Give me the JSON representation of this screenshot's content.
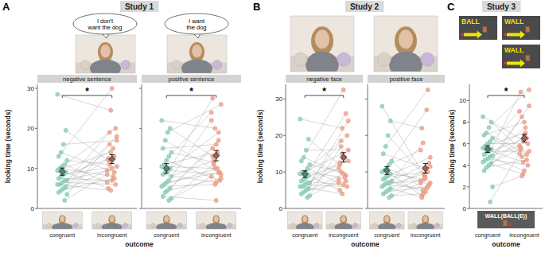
{
  "studies": [
    {
      "title": "Study 1",
      "letter": "A",
      "bubbles": [
        "I don't want the dog",
        "I want the dog"
      ]
    },
    {
      "title": "Study 2",
      "letter": "B"
    },
    {
      "title": "Study 3",
      "letter": "C",
      "screens": [
        "BALL",
        "WALL",
        "WALL"
      ],
      "outcome_screen": "WALL(BALL(E))"
    }
  ],
  "chart_data": [
    {
      "type": "scatter",
      "title": "negative sentence",
      "ylabel": "looking time (seconds)",
      "xlabel": "outcome",
      "ylim": [
        0,
        31
      ],
      "yticks": [
        0,
        10,
        20,
        30
      ],
      "series": [
        {
          "name": "congruent",
          "color": "#8dd3b7",
          "values": [
            28.5,
            19.5,
            16,
            14,
            13,
            12,
            11,
            10.5,
            10,
            9.5,
            9,
            8.5,
            8,
            7.5,
            7,
            7,
            6.5,
            6,
            6,
            5.5,
            5,
            4.5,
            4,
            3.5,
            2
          ]
        },
        {
          "name": "incongruent",
          "color": "#f4a28c",
          "values": [
            24.5,
            12,
            17,
            9,
            30,
            11,
            6.5,
            20,
            8,
            14,
            5,
            10.5,
            13,
            7,
            19,
            9.5,
            6,
            15,
            4.5,
            12.5,
            18,
            7.5,
            10,
            16,
            8.5
          ]
        }
      ],
      "means": [
        9.2,
        12.3
      ],
      "errors": [
        0.9,
        1.1
      ],
      "significance": "*"
    },
    {
      "type": "scatter",
      "title": "positive sentence",
      "ylim": [
        0,
        31
      ],
      "yticks": [
        0,
        10,
        20,
        30
      ],
      "tick_labels": "x",
      "series": [
        {
          "name": "congruent",
          "color": "#8dd3b7",
          "values": [
            22,
            20,
            19,
            17,
            15,
            14,
            13,
            12,
            11,
            10.5,
            10,
            9.5,
            9,
            8.5,
            8,
            7,
            6.5,
            6,
            5.5,
            5,
            4.5,
            4,
            3,
            2.5,
            2
          ]
        },
        {
          "name": "incongruent",
          "color": "#f4a28c",
          "values": [
            20,
            13,
            26,
            9,
            16,
            11.5,
            24,
            7,
            14,
            10,
            27.5,
            8.5,
            19,
            6.5,
            12,
            22,
            9,
            10,
            6,
            15,
            7.5,
            17,
            2,
            11,
            8
          ]
        }
      ],
      "means": [
        10,
        13.2
      ],
      "errors": [
        1.2,
        1.3
      ],
      "significance": "*"
    },
    {
      "type": "scatter",
      "title": "negative face",
      "ylabel": "looking time (seconds)",
      "xlabel": "outcome",
      "ylim": [
        0,
        34
      ],
      "yticks": [
        0,
        10,
        20,
        30
      ],
      "series": [
        {
          "name": "congruent",
          "color": "#8dd3b7",
          "values": [
            24.5,
            19,
            16,
            14,
            13,
            12,
            11,
            10,
            10,
            9.5,
            9,
            8.5,
            8,
            7.5,
            7,
            7,
            6.5,
            6,
            6,
            5.5,
            5,
            4.5,
            4,
            3.5,
            3
          ]
        },
        {
          "name": "incongruent",
          "color": "#f4a28c",
          "values": [
            22,
            12,
            16,
            9,
            32.5,
            10,
            7,
            20,
            8.5,
            15,
            5,
            13,
            26,
            6.5,
            18.5,
            11,
            6,
            14,
            4,
            12.5,
            24,
            7.5,
            9.5,
            17,
            8
          ]
        }
      ],
      "means": [
        9.4,
        14
      ],
      "errors": [
        0.9,
        1.3
      ],
      "significance": "*"
    },
    {
      "type": "scatter",
      "title": "positive face",
      "ylim": [
        0,
        34
      ],
      "yticks": [
        0,
        10,
        20,
        30
      ],
      "tick_labels": "x",
      "series": [
        {
          "name": "congruent",
          "color": "#8dd3b7",
          "values": [
            28,
            24,
            20,
            17,
            15,
            13,
            12,
            11,
            10.5,
            10,
            9.5,
            9,
            8.5,
            8,
            7.5,
            7,
            7,
            6.5,
            6,
            5.5,
            5,
            4.5,
            4,
            3.5,
            3
          ]
        },
        {
          "name": "incongruent",
          "color": "#f4a28c",
          "values": [
            9,
            22,
            7,
            32.5,
            11,
            5,
            16,
            6.5,
            27,
            8,
            3.5,
            14,
            10,
            4.5,
            18,
            7.5,
            12.5,
            5.5,
            9.5,
            3,
            11.5,
            6,
            8.5,
            4,
            7
          ]
        }
      ],
      "means": [
        10.4,
        11
      ],
      "errors": [
        1.1,
        1.3
      ]
    },
    {
      "type": "scatter",
      "ylabel": "looking time (seconds)",
      "xlabel": "outcome",
      "ylim": [
        0,
        11.5
      ],
      "yticks": [
        0,
        2,
        4,
        6,
        8,
        10
      ],
      "series": [
        {
          "name": "congruent",
          "color": "#8dd3b7",
          "values": [
            8.5,
            8,
            7.5,
            7,
            6.8,
            6.5,
            6.2,
            6,
            5.8,
            5.6,
            5.5,
            5.3,
            5.2,
            5,
            4.9,
            4.8,
            4.6,
            4.5,
            4.3,
            4.2,
            4,
            3.8,
            3.5,
            2,
            0.6
          ]
        },
        {
          "name": "incongruent",
          "color": "#f4a28c",
          "values": [
            6.3,
            5.5,
            11,
            5,
            8,
            4.8,
            9,
            6,
            7,
            4.3,
            10.8,
            5.3,
            6.5,
            3.5,
            8.5,
            5.8,
            4,
            7.5,
            3.2,
            5.6,
            9.5,
            4.5,
            6.8,
            3,
            5.1
          ]
        }
      ],
      "means": [
        5.5,
        6.5
      ],
      "errors": [
        0.3,
        0.35
      ],
      "significance": "*"
    }
  ]
}
